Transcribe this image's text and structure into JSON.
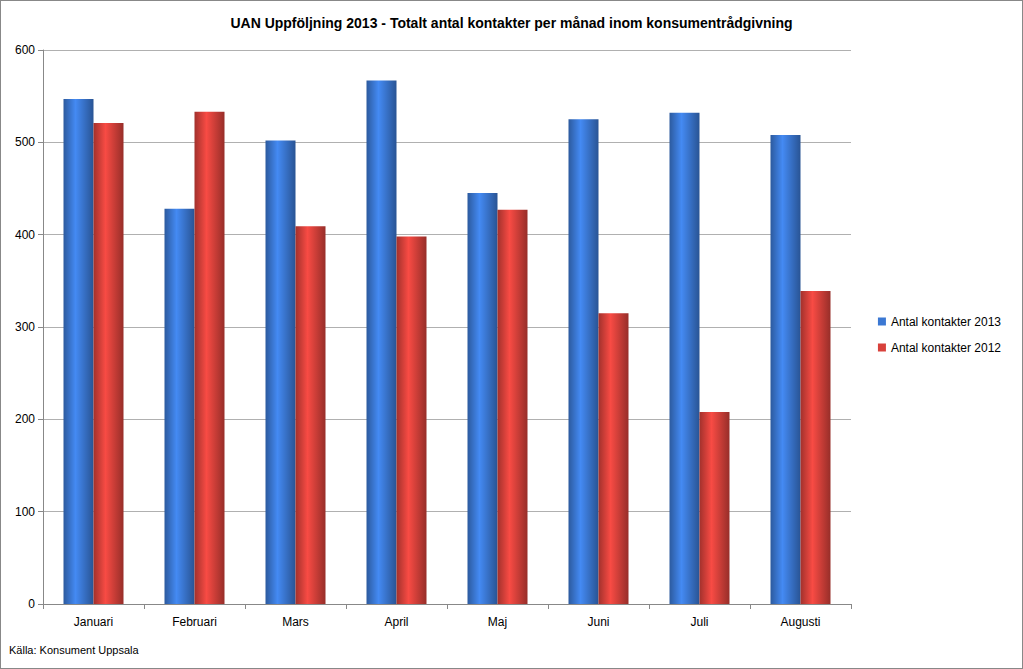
{
  "chart_data": {
    "type": "bar",
    "title": "UAN Uppföljning 2013 - Totalt antal kontakter per månad inom konsumentrådgivning",
    "categories": [
      "Januari",
      "Februari",
      "Mars",
      "April",
      "Maj",
      "Juni",
      "Juli",
      "Augusti"
    ],
    "series": [
      {
        "name": "Antal kontakter 2013",
        "color": "#3b78d3",
        "values": [
          547,
          428,
          502,
          567,
          445,
          525,
          532,
          508
        ]
      },
      {
        "name": "Antal kontakter 2012",
        "color": "#d8413b",
        "values": [
          521,
          533,
          409,
          398,
          427,
          315,
          208,
          339
        ]
      }
    ],
    "ylim": [
      0,
      600
    ],
    "yticks": [
      0,
      100,
      200,
      300,
      400,
      500,
      600
    ],
    "grid": true,
    "legend": "right",
    "annotations": [
      "Källa: Konsument Uppsala"
    ]
  }
}
